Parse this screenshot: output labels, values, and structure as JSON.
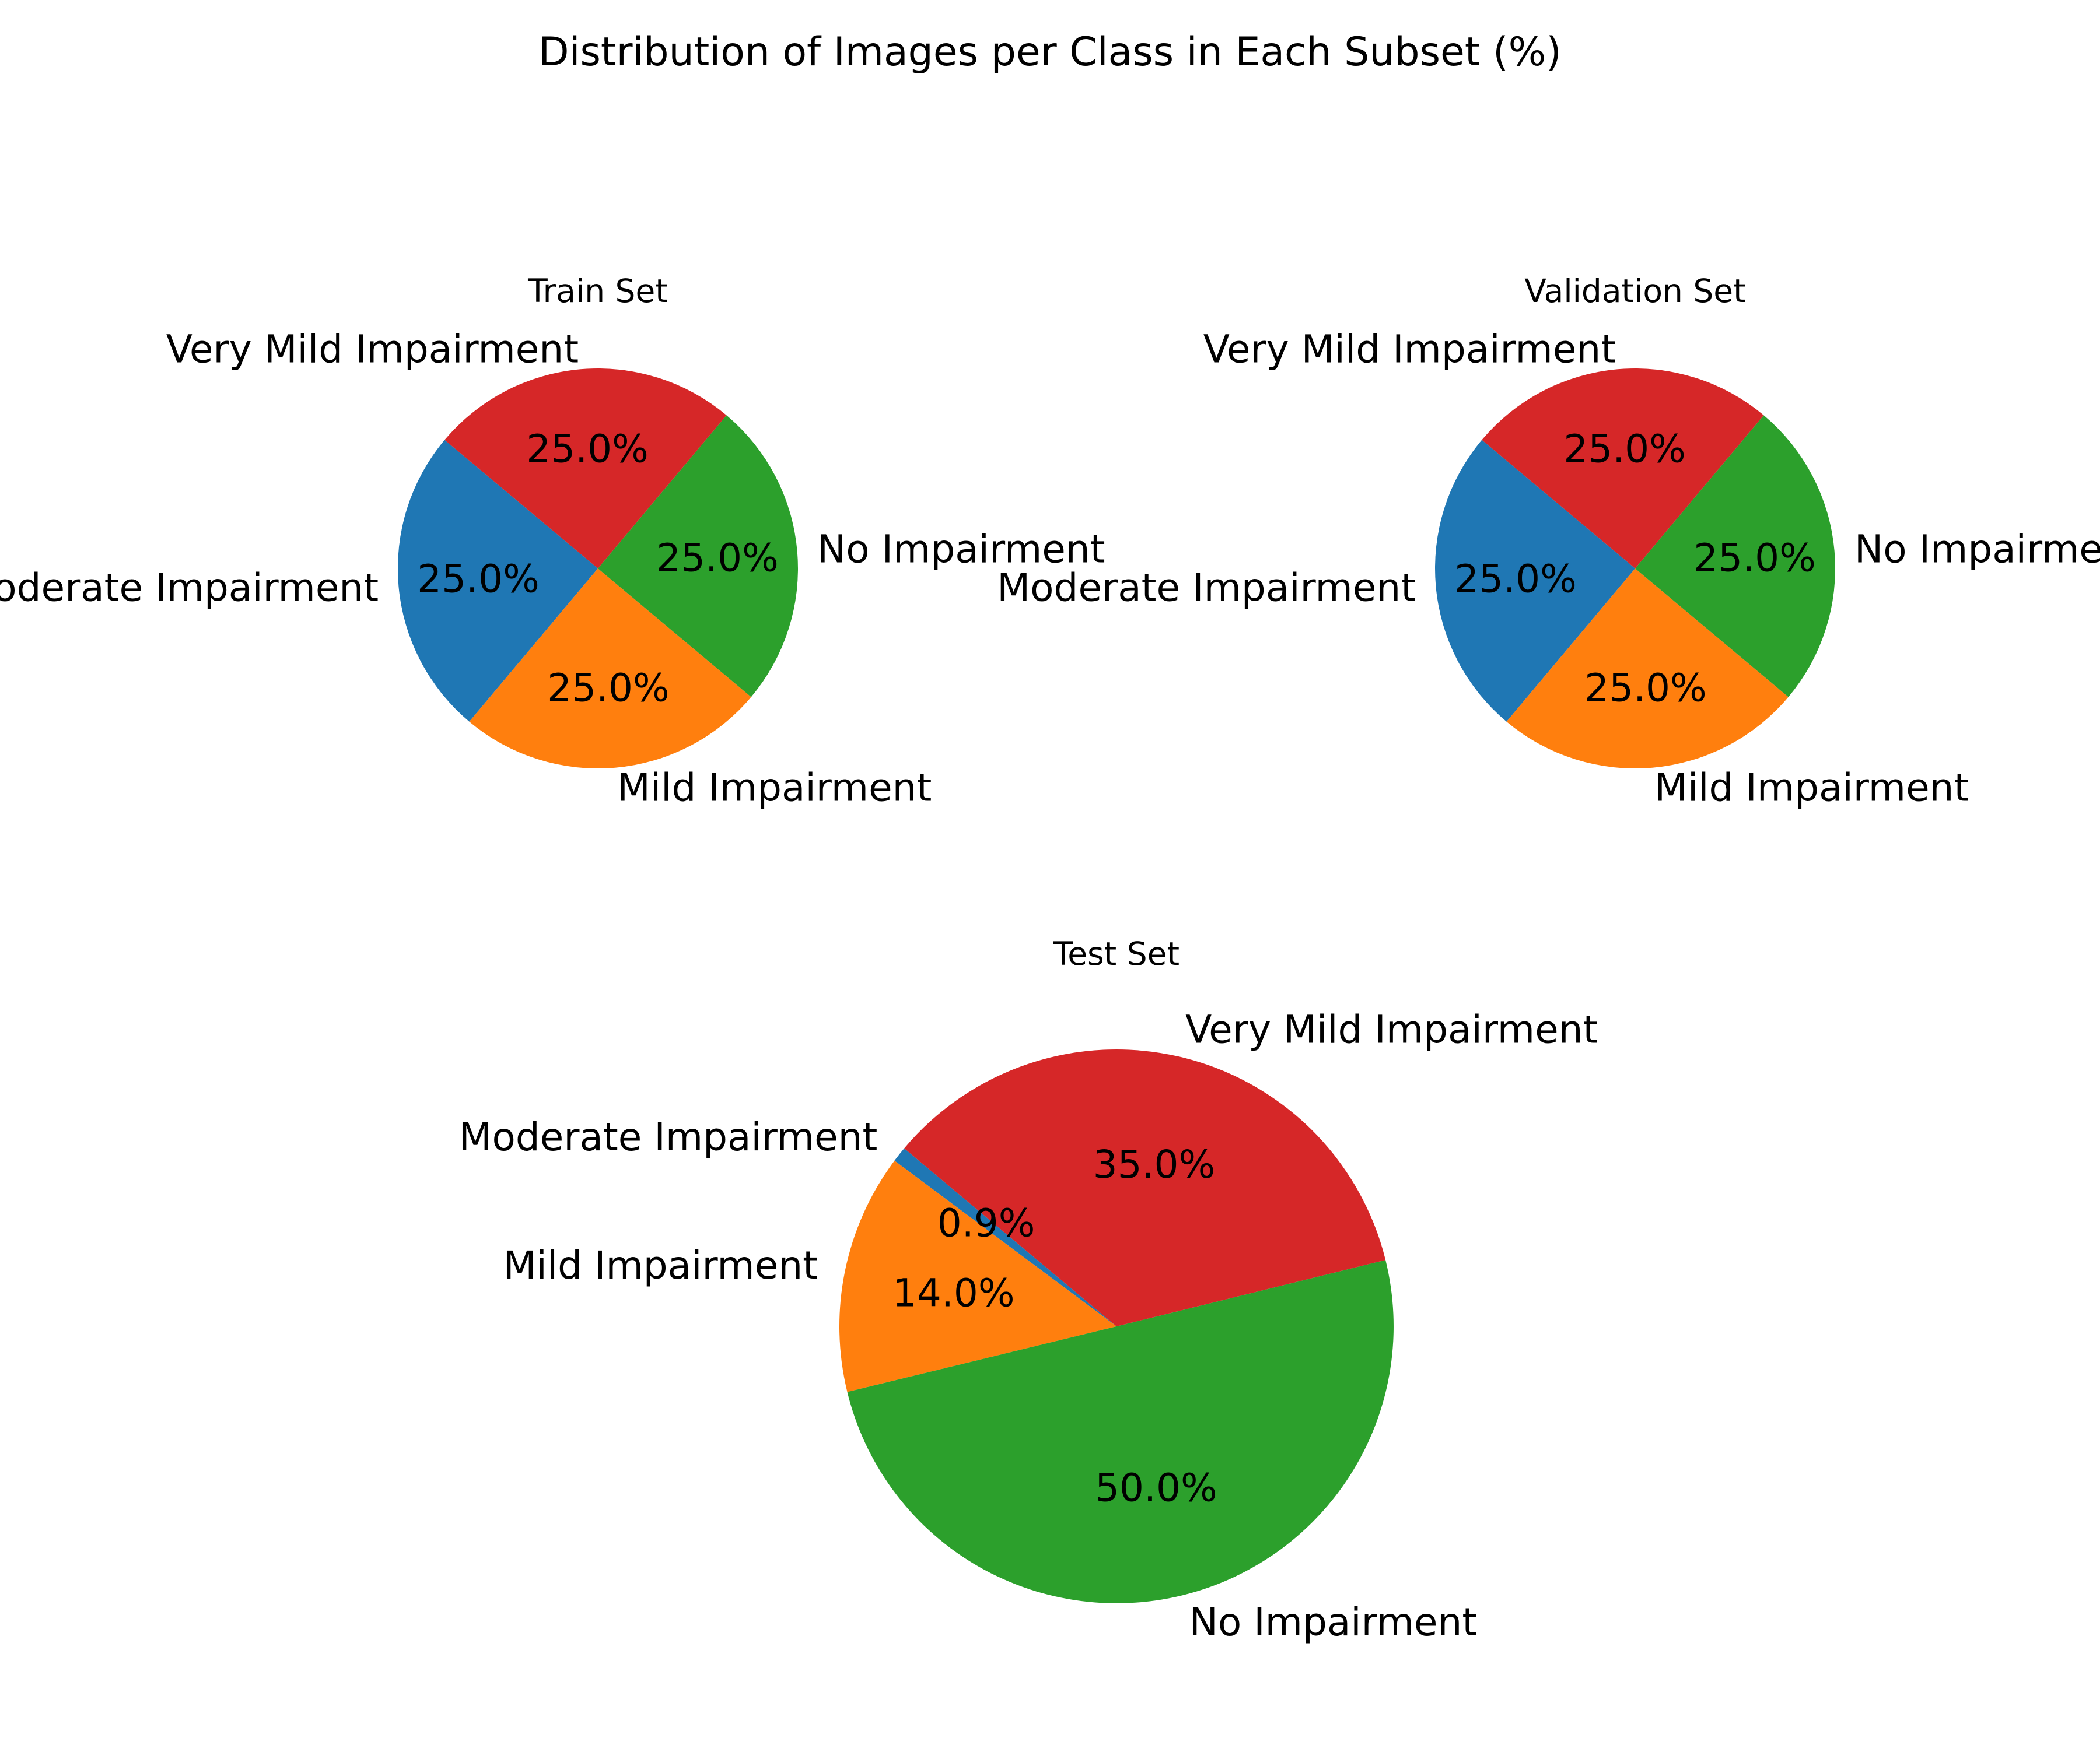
{
  "figure": {
    "title": "Distribution of Images per Class in Each Subset (%)"
  },
  "colors": {
    "Moderate Impairment": "#1f77b4",
    "Mild Impairment": "#ff7f0e",
    "No Impairment": "#2ca02c",
    "Very Mild Impairment": "#d62728"
  },
  "chart_data": [
    {
      "type": "pie",
      "title": "Train Set",
      "categories": [
        "Moderate Impairment",
        "Mild Impairment",
        "No Impairment",
        "Very Mild Impairment"
      ],
      "values": [
        25.0,
        25.0,
        25.0,
        25.0
      ],
      "labels": [
        "25.0%",
        "25.0%",
        "25.0%",
        "25.0%"
      ],
      "start_angle_deg": 140
    },
    {
      "type": "pie",
      "title": "Validation Set",
      "categories": [
        "Moderate Impairment",
        "Mild Impairment",
        "No Impairment",
        "Very Mild Impairment"
      ],
      "values": [
        25.0,
        25.0,
        25.0,
        25.0
      ],
      "labels": [
        "25.0%",
        "25.0%",
        "25.0%",
        "25.0%"
      ],
      "start_angle_deg": 140
    },
    {
      "type": "pie",
      "title": "Test Set",
      "categories": [
        "Moderate Impairment",
        "Mild Impairment",
        "No Impairment",
        "Very Mild Impairment"
      ],
      "values": [
        0.9,
        14.0,
        50.0,
        35.0
      ],
      "labels": [
        "0.9%",
        "14.0%",
        "50.0%",
        "35.0%"
      ],
      "start_angle_deg": 140
    }
  ]
}
